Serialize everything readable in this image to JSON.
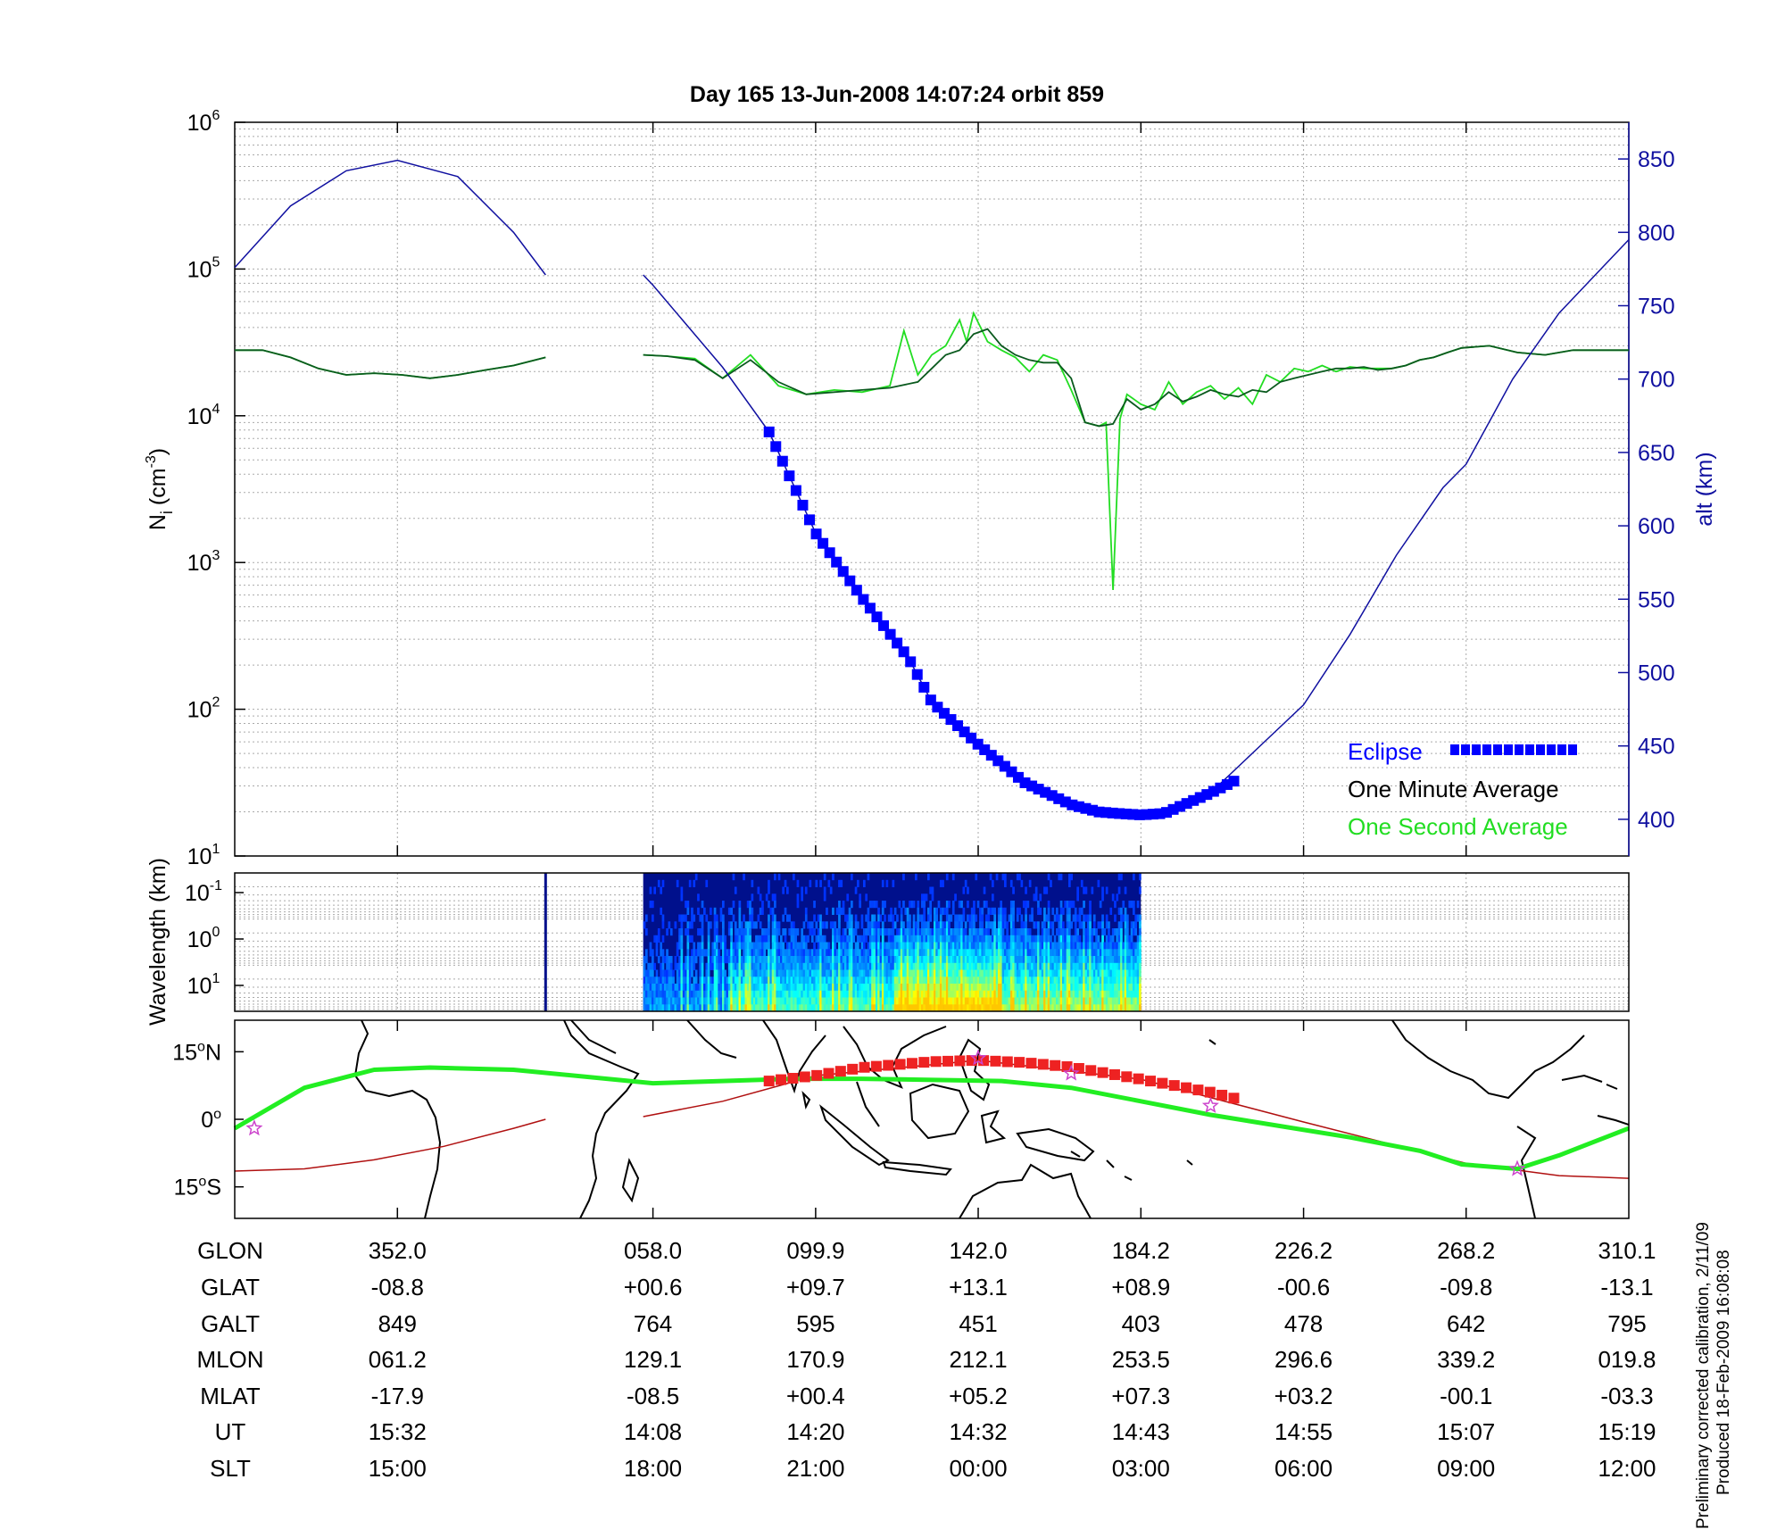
{
  "title": "Day 165  13-Jun-2008 14:07:24   orbit 859",
  "colors": {
    "alt": "#1010a0",
    "eclipse": "#0000ff",
    "minute": "#0a5a1e",
    "second": "#22dd22",
    "track": "#22ee22",
    "eclipse_track": "#ee2222",
    "orbit_line": "#b01010",
    "star": "#cc44cc",
    "grid": "#aaaaaa"
  },
  "chart_data": [
    {
      "type": "line",
      "panel": "density",
      "ylabel": "N_i (cm^-3)",
      "ylabel_main": "N",
      "ylabel_sub": "i",
      "ylabel_unit": "(cm",
      "ylabel_exp": "-3",
      "ylabel_close": ")",
      "yscale": "log",
      "ylim": [
        10,
        1000000
      ],
      "yticks": [
        {
          "base": "10",
          "exp": "1"
        },
        {
          "base": "10",
          "exp": "2"
        },
        {
          "base": "10",
          "exp": "3"
        },
        {
          "base": "10",
          "exp": "4"
        },
        {
          "base": "10",
          "exp": "5"
        },
        {
          "base": "10",
          "exp": "6"
        }
      ],
      "y2label": "alt (km)",
      "y2lim": [
        375,
        875
      ],
      "y2ticks": [
        "400",
        "450",
        "500",
        "550",
        "600",
        "650",
        "700",
        "750",
        "800",
        "850"
      ],
      "xlim": [
        0,
        1
      ],
      "xticks_fraction": [
        0.1167,
        0.3,
        0.4167,
        0.5333,
        0.65,
        0.7667,
        0.8833
      ],
      "grid": true,
      "legend_position": "bottom-right",
      "legend": [
        {
          "label": "Eclipse",
          "color": "#0000ff"
        },
        {
          "label": "One Minute Average",
          "color": "#000000"
        },
        {
          "label": "One Second Average",
          "color": "#22dd22"
        }
      ],
      "data_gap": [
        0.223,
        0.293
      ],
      "series": [
        {
          "name": "alt (km)",
          "axis": "right",
          "x": [
            0.0,
            0.04,
            0.08,
            0.1167,
            0.16,
            0.2,
            0.223,
            0.293,
            0.3,
            0.35,
            0.3833,
            0.4167,
            0.45,
            0.4833,
            0.5,
            0.5333,
            0.5667,
            0.6,
            0.62,
            0.6333,
            0.65,
            0.6667,
            0.7,
            0.7333,
            0.7667,
            0.8,
            0.8333,
            0.8667,
            0.8833,
            0.9167,
            0.95,
            1.0
          ],
          "y": [
            776,
            818,
            842,
            849,
            838,
            800,
            771,
            771,
            764,
            708,
            664,
            595,
            551,
            510,
            480,
            451,
            425,
            410,
            405,
            404,
            403,
            404,
            418,
            448,
            478,
            526,
            580,
            626,
            642,
            700,
            745,
            795
          ]
        },
        {
          "name": "One Minute Average",
          "axis": "left",
          "x": [
            0.0,
            0.02,
            0.04,
            0.06,
            0.08,
            0.1,
            0.12,
            0.14,
            0.16,
            0.18,
            0.2,
            0.223,
            0.293,
            0.31,
            0.33,
            0.35,
            0.37,
            0.39,
            0.41,
            0.43,
            0.45,
            0.47,
            0.49,
            0.5,
            0.51,
            0.52,
            0.53,
            0.54,
            0.55,
            0.56,
            0.57,
            0.58,
            0.59,
            0.6,
            0.61,
            0.62,
            0.63,
            0.64,
            0.65,
            0.66,
            0.67,
            0.68,
            0.69,
            0.7,
            0.71,
            0.72,
            0.73,
            0.74,
            0.75,
            0.76,
            0.77,
            0.78,
            0.79,
            0.8,
            0.81,
            0.82,
            0.83,
            0.84,
            0.85,
            0.86,
            0.87,
            0.88,
            0.9,
            0.92,
            0.94,
            0.96,
            0.98,
            1.0
          ],
          "y": [
            28000,
            28000,
            25000,
            21000,
            19000,
            19500,
            19000,
            18000,
            19000,
            20500,
            22000,
            25000,
            26000,
            25500,
            24000,
            18000,
            24000,
            17000,
            14000,
            14500,
            15000,
            15500,
            17000,
            21000,
            26000,
            28000,
            36000,
            39000,
            30000,
            26000,
            24000,
            23000,
            23000,
            18000,
            9000,
            8500,
            8800,
            13000,
            11000,
            12000,
            14500,
            12500,
            13500,
            15000,
            14000,
            13500,
            15000,
            14500,
            17000,
            18000,
            19000,
            20000,
            21000,
            21000,
            21500,
            20500,
            21000,
            22000,
            24000,
            25000,
            27000,
            29000,
            30000,
            27000,
            26000,
            28000,
            28000,
            28000
          ]
        },
        {
          "name": "One Second Average",
          "axis": "left",
          "x": [
            0.0,
            0.02,
            0.04,
            0.06,
            0.08,
            0.1,
            0.12,
            0.14,
            0.16,
            0.18,
            0.2,
            0.223,
            0.293,
            0.31,
            0.33,
            0.35,
            0.37,
            0.39,
            0.41,
            0.43,
            0.45,
            0.47,
            0.48,
            0.49,
            0.5,
            0.51,
            0.52,
            0.525,
            0.53,
            0.54,
            0.55,
            0.56,
            0.57,
            0.58,
            0.59,
            0.6,
            0.61,
            0.62,
            0.625,
            0.63,
            0.635,
            0.64,
            0.65,
            0.66,
            0.67,
            0.68,
            0.69,
            0.7,
            0.71,
            0.72,
            0.73,
            0.74,
            0.75,
            0.76,
            0.77,
            0.78,
            0.79,
            0.8,
            0.81,
            0.82,
            0.83,
            0.84,
            0.85,
            0.86,
            0.87,
            0.88,
            0.9,
            0.92,
            0.94,
            0.96,
            0.98,
            1.0
          ],
          "y": [
            28000,
            28000,
            25000,
            21000,
            19000,
            19500,
            19000,
            18000,
            19000,
            20500,
            22000,
            25000,
            26000,
            25500,
            24500,
            18000,
            26000,
            16000,
            14000,
            15000,
            14500,
            16000,
            38000,
            19000,
            26000,
            30000,
            45000,
            32000,
            50000,
            32000,
            28000,
            25000,
            20000,
            26000,
            24000,
            15000,
            9000,
            8500,
            9000,
            650,
            9500,
            14000,
            12000,
            11000,
            17000,
            12000,
            14500,
            16000,
            13000,
            15500,
            12000,
            19000,
            17000,
            21000,
            20000,
            22000,
            20000,
            21500,
            21000,
            21000,
            21000,
            22000,
            24000,
            25000,
            27000,
            29000,
            30000,
            27000,
            26000,
            28000,
            28000,
            28000
          ]
        },
        {
          "name": "Eclipse",
          "axis": "right",
          "x": [
            0.3833,
            0.4167,
            0.45,
            0.4833,
            0.5,
            0.5333,
            0.5667,
            0.6,
            0.62,
            0.6333,
            0.65,
            0.6667,
            0.7,
            0.7167
          ],
          "y": [
            664,
            595,
            551,
            510,
            480,
            451,
            425,
            410,
            405,
            404,
            403,
            404,
            418,
            426
          ]
        }
      ]
    },
    {
      "type": "heatmap",
      "panel": "spectrogram",
      "ylabel": "Wavelength (km)",
      "yscale": "log",
      "yticks": [
        {
          "base": "10",
          "exp": "-1"
        },
        {
          "base": "10",
          "exp": "0"
        },
        {
          "base": "10",
          "exp": "1"
        }
      ],
      "data_extent_fraction": [
        0.293,
        0.65
      ],
      "marker_line_fraction": 0.223,
      "colormap": "jet"
    },
    {
      "type": "line",
      "panel": "map",
      "yticks": [
        {
          "deg": "15",
          "hem": "N"
        },
        {
          "deg": "0",
          "hem": ""
        },
        {
          "deg": "15",
          "hem": "S"
        }
      ],
      "ylim": [
        -22,
        22
      ],
      "series": [
        {
          "name": "magnetic equator",
          "color": "#22ee22",
          "x": [
            0.0,
            0.05,
            0.1,
            0.14,
            0.2,
            0.3,
            0.4,
            0.45,
            0.55,
            0.6,
            0.65,
            0.7,
            0.8,
            0.85,
            0.88,
            0.92,
            0.95,
            1.0
          ],
          "y": [
            -2,
            7,
            11,
            11.5,
            11,
            8,
            9,
            9,
            8.5,
            7,
            4,
            1,
            -4,
            -7,
            -10,
            -11,
            -8,
            -2
          ]
        },
        {
          "name": "orbit track",
          "color": "#b01010",
          "x": [
            0.0,
            0.05,
            0.1,
            0.15,
            0.2,
            0.223,
            0.293,
            0.35,
            0.4167,
            0.5333,
            0.65,
            0.7667,
            0.8833,
            0.95,
            1.0
          ],
          "y": [
            -11.5,
            -11,
            -9,
            -6,
            -2,
            0,
            0.6,
            4,
            9.7,
            13.1,
            8.9,
            -0.6,
            -9.8,
            -12.5,
            -13.1
          ]
        },
        {
          "name": "Eclipse",
          "color": "#ee2222",
          "x": [
            0.3833,
            0.4167,
            0.45,
            0.5,
            0.5333,
            0.5667,
            0.6,
            0.65,
            0.7,
            0.7167
          ],
          "y": [
            8.5,
            9.7,
            11.5,
            12.8,
            13.1,
            12.6,
            11.6,
            8.9,
            6.0,
            4.7
          ]
        }
      ],
      "stars": [
        {
          "x": 0.014,
          "y": -2
        },
        {
          "x": 0.5333,
          "y": 13.6
        },
        {
          "x": 0.6,
          "y": 10.2
        },
        {
          "x": 0.7,
          "y": 3
        },
        {
          "x": 0.92,
          "y": -11
        }
      ]
    }
  ],
  "table": {
    "labels": [
      "GLON",
      "GLAT",
      "GALT",
      "MLON",
      "MLAT",
      "UT",
      "SLT"
    ],
    "columns": [
      [
        "352.0",
        "-08.8",
        "849",
        "061.2",
        "-17.9",
        "15:32",
        "15:00"
      ],
      [
        "058.0",
        "+00.6",
        "764",
        "129.1",
        "-08.5",
        "14:08",
        "18:00"
      ],
      [
        "099.9",
        "+09.7",
        "595",
        "170.9",
        "+00.4",
        "14:20",
        "21:00"
      ],
      [
        "142.0",
        "+13.1",
        "451",
        "212.1",
        "+05.2",
        "14:32",
        "00:00"
      ],
      [
        "184.2",
        "+08.9",
        "403",
        "253.5",
        "+07.3",
        "14:43",
        "03:00"
      ],
      [
        "226.2",
        "-00.6",
        "478",
        "296.6",
        "+03.2",
        "14:55",
        "06:00"
      ],
      [
        "268.2",
        "-09.8",
        "642",
        "339.2",
        "-00.1",
        "15:07",
        "09:00"
      ],
      [
        "310.1",
        "-13.1",
        "795",
        "019.8",
        "-03.3",
        "15:19",
        "12:00"
      ]
    ]
  },
  "notes": {
    "calibration": "Preliminary corrected calibration, 2/11/09",
    "produced": "Produced 18-Feb-2009 16:08:08"
  }
}
